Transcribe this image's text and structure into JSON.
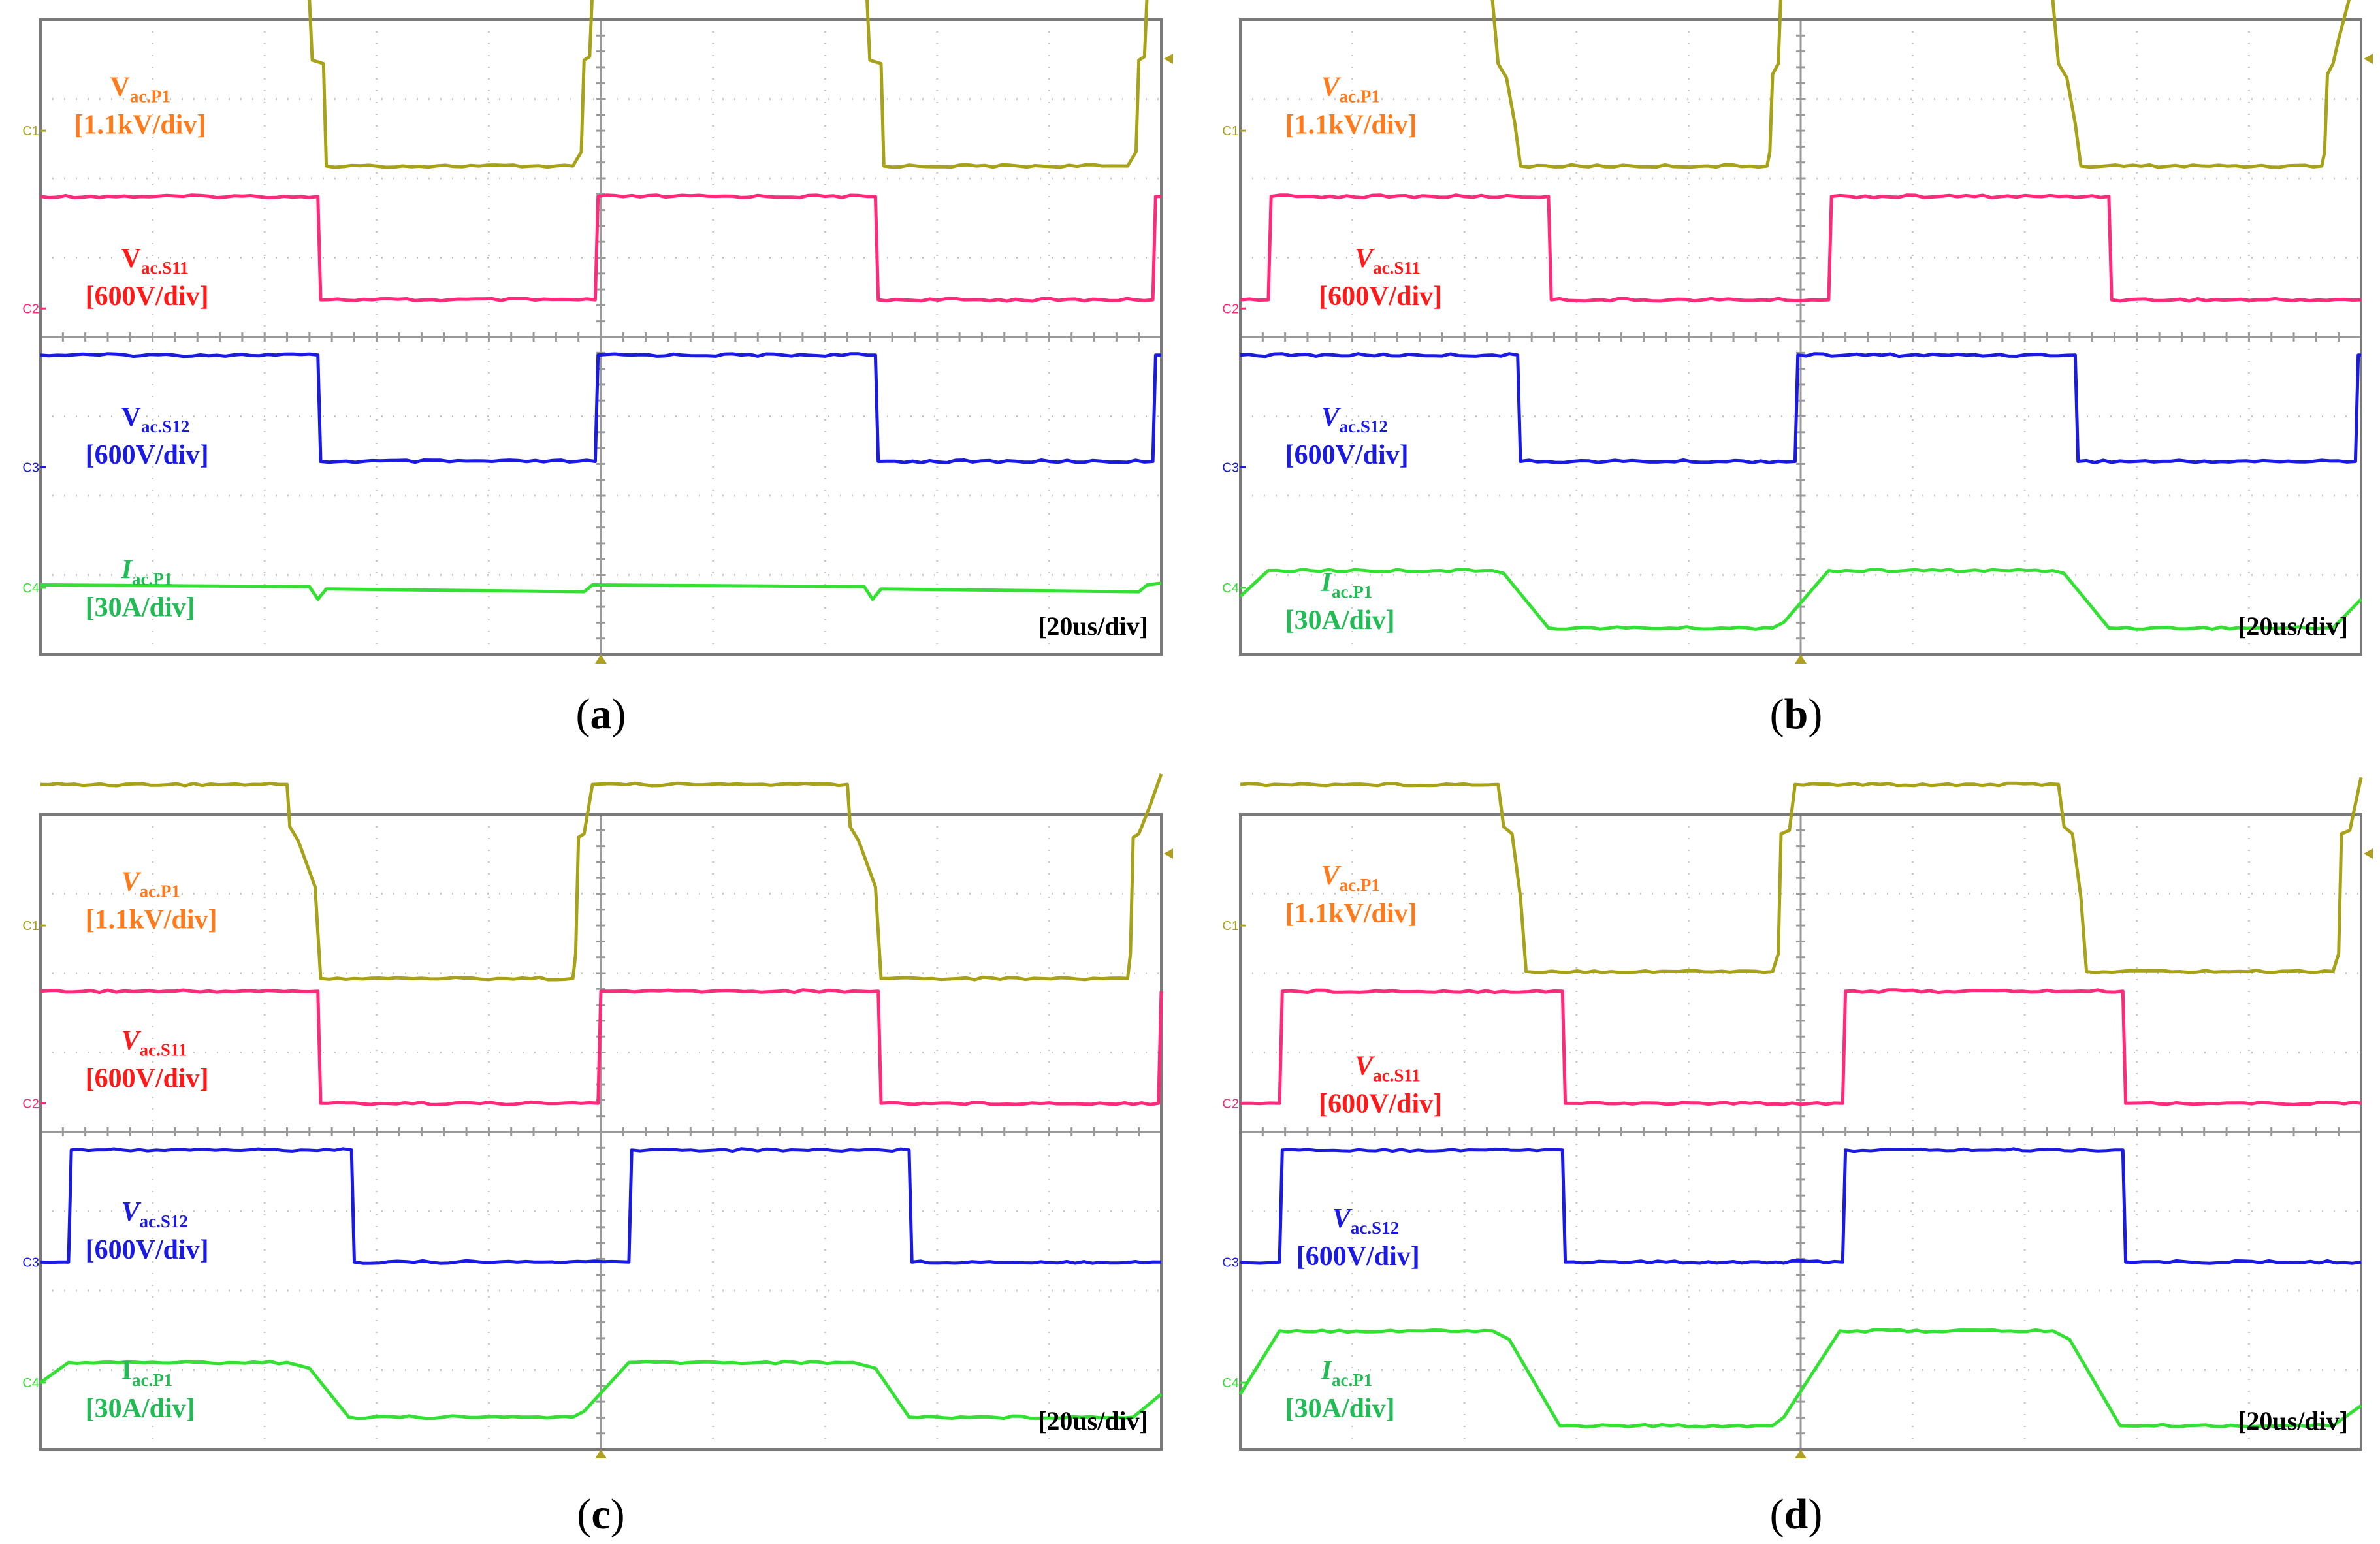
{
  "colors": {
    "ch1": "#a8a21a",
    "ch2": "#ff2a7a",
    "ch3": "#1a1ae0",
    "ch4": "#33e033",
    "v_p1_label": "#ff7a1a",
    "v_s11_label": "#ff1a1a",
    "v_s12_label": "#1a1ae0",
    "i_p1_label": "#22bb55"
  },
  "channel_tags": [
    "C1",
    "C2",
    "C3",
    "C4"
  ],
  "chart_data": [
    {
      "type": "line",
      "caption": "(a)",
      "timebase": "[20us/div]",
      "xlim": [
        0,
        200
      ],
      "x_unit": "us",
      "divisions": {
        "x": 10,
        "y": 8
      },
      "series": [
        {
          "channel": "C1",
          "label_main": "V",
          "label_sub": "ac.P1",
          "scale": "[1.1kV/div]",
          "italic": false,
          "high": 2.0,
          "low": -0.55,
          "points": [
            [
              0,
              2.0
            ],
            [
              47,
              2.0
            ],
            [
              48,
              1.85
            ],
            [
              48.5,
              1.0
            ],
            [
              50.5,
              0.95
            ],
            [
              51,
              -0.5
            ],
            [
              95,
              -0.5
            ],
            [
              96.5,
              -0.3
            ],
            [
              97,
              1.0
            ],
            [
              98,
              1.05
            ],
            [
              98.5,
              2.0
            ],
            [
              147,
              2.0
            ],
            [
              147.5,
              1.85
            ],
            [
              148,
              1.0
            ],
            [
              150,
              0.95
            ],
            [
              150.5,
              -0.5
            ],
            [
              194,
              -0.5
            ],
            [
              195.5,
              -0.3
            ],
            [
              196,
              1.0
            ],
            [
              197,
              1.05
            ],
            [
              197.5,
              2.0
            ],
            [
              200,
              2.0
            ]
          ]
        },
        {
          "channel": "C2",
          "label_main": "V",
          "label_sub": "ac.S11",
          "scale": "[600V/div]",
          "italic": false,
          "high": 1.95,
          "low": 0.15,
          "points": [
            [
              0,
              1.95
            ],
            [
              49.5,
              1.95
            ],
            [
              50,
              0.15
            ],
            [
              99,
              0.15
            ],
            [
              99.5,
              1.95
            ],
            [
              149,
              1.95
            ],
            [
              149.5,
              0.15
            ],
            [
              198.5,
              0.15
            ],
            [
              199,
              1.95
            ],
            [
              200,
              1.95
            ]
          ]
        },
        {
          "channel": "C3",
          "label_main": "V",
          "label_sub": "ac.S12",
          "scale": "[600V/div]",
          "italic": false,
          "high": 1.95,
          "low": 0.1,
          "points": [
            [
              0,
              1.95
            ],
            [
              49.5,
              1.95
            ],
            [
              50,
              0.1
            ],
            [
              99,
              0.1
            ],
            [
              99.5,
              1.95
            ],
            [
              149,
              1.95
            ],
            [
              149.5,
              0.1
            ],
            [
              198.5,
              0.1
            ],
            [
              199,
              1.95
            ],
            [
              200,
              1.95
            ]
          ]
        },
        {
          "channel": "C4",
          "label_main": "I",
          "label_sub": "ac.P1",
          "scale": "[30A/div]",
          "italic": true,
          "high": 0.05,
          "low": -0.05,
          "points": [
            [
              0,
              0.05
            ],
            [
              48,
              0.02
            ],
            [
              49.5,
              -0.2
            ],
            [
              51,
              -0.02
            ],
            [
              97,
              -0.07
            ],
            [
              98.5,
              0.05
            ],
            [
              147,
              0.02
            ],
            [
              148.5,
              -0.2
            ],
            [
              150,
              -0.02
            ],
            [
              196,
              -0.07
            ],
            [
              197.5,
              0.05
            ],
            [
              200,
              0.08
            ]
          ]
        }
      ]
    },
    {
      "type": "line",
      "caption": "(b)",
      "timebase": "[20us/div]",
      "xlim": [
        0,
        200
      ],
      "x_unit": "us",
      "divisions": {
        "x": 10,
        "y": 8
      },
      "series": [
        {
          "channel": "C1",
          "label_main": "V",
          "label_sub": "ac.P1",
          "scale": "[1.1kV/div]",
          "italic": true,
          "high": 2.0,
          "low": -0.5,
          "points": [
            [
              0,
              2.0
            ],
            [
              44,
              2.0
            ],
            [
              45,
              1.85
            ],
            [
              46,
              0.95
            ],
            [
              47.5,
              0.75
            ],
            [
              49,
              0.1
            ],
            [
              50,
              -0.5
            ],
            [
              94,
              -0.5
            ],
            [
              94.5,
              -0.3
            ],
            [
              95,
              0.8
            ],
            [
              96,
              0.95
            ],
            [
              96.5,
              2.0
            ],
            [
              144,
              2.0
            ],
            [
              145,
              1.85
            ],
            [
              146,
              0.95
            ],
            [
              147.5,
              0.75
            ],
            [
              149,
              0.1
            ],
            [
              150,
              -0.5
            ],
            [
              193,
              -0.5
            ],
            [
              193.5,
              -0.3
            ],
            [
              194,
              0.8
            ],
            [
              195,
              0.95
            ],
            [
              196,
              1.3
            ],
            [
              198,
              1.9
            ],
            [
              200,
              2.1
            ]
          ]
        },
        {
          "channel": "C2",
          "label_main": "V",
          "label_sub": "ac.S11",
          "scale": "[600V/div]",
          "italic": true,
          "high": 1.95,
          "low": 0.15,
          "points": [
            [
              0,
              0.15
            ],
            [
              5,
              0.15
            ],
            [
              5.5,
              1.95
            ],
            [
              55,
              1.95
            ],
            [
              55.5,
              0.15
            ],
            [
              105,
              0.15
            ],
            [
              105.5,
              1.95
            ],
            [
              155,
              1.95
            ],
            [
              155.5,
              0.15
            ],
            [
              200,
              0.15
            ]
          ]
        },
        {
          "channel": "C3",
          "label_main": "V",
          "label_sub": "ac.S12",
          "scale": "[600V/div]",
          "italic": true,
          "high": 1.95,
          "low": 0.1,
          "points": [
            [
              0,
              1.95
            ],
            [
              49.5,
              1.95
            ],
            [
              50,
              0.1
            ],
            [
              99,
              0.1
            ],
            [
              99.5,
              1.95
            ],
            [
              149,
              1.95
            ],
            [
              149.5,
              0.1
            ],
            [
              199,
              0.1
            ],
            [
              199.5,
              1.95
            ],
            [
              200,
              1.95
            ]
          ]
        },
        {
          "channel": "C4",
          "label_main": "I",
          "label_sub": "ac.P1",
          "scale": "[30A/div]",
          "italic": true,
          "high": 0.3,
          "low": -0.7,
          "points": [
            [
              0,
              -0.15
            ],
            [
              5,
              0.3
            ],
            [
              45,
              0.3
            ],
            [
              47,
              0.25
            ],
            [
              55,
              -0.7
            ],
            [
              95,
              -0.7
            ],
            [
              97,
              -0.6
            ],
            [
              105,
              0.3
            ],
            [
              145,
              0.3
            ],
            [
              147,
              0.25
            ],
            [
              155,
              -0.7
            ],
            [
              195,
              -0.7
            ],
            [
              200,
              -0.2
            ]
          ]
        }
      ]
    },
    {
      "type": "line",
      "caption": "(c)",
      "timebase": "[20us/div]",
      "xlim": [
        0,
        200
      ],
      "x_unit": "us",
      "divisions": {
        "x": 10,
        "y": 8
      },
      "series": [
        {
          "channel": "C1",
          "label_main": "V",
          "label_sub": "ac.P1",
          "scale": "[1.1kV/div]",
          "italic": true,
          "high": 2.0,
          "low": -0.75,
          "points": [
            [
              0,
              2.0
            ],
            [
              44,
              2.0
            ],
            [
              44.5,
              1.4
            ],
            [
              46,
              1.2
            ],
            [
              49,
              0.55
            ],
            [
              50,
              -0.75
            ],
            [
              95,
              -0.75
            ],
            [
              95.5,
              -0.4
            ],
            [
              96,
              1.25
            ],
            [
              97,
              1.3
            ],
            [
              98.5,
              2.0
            ],
            [
              144,
              2.0
            ],
            [
              144.5,
              1.4
            ],
            [
              146,
              1.2
            ],
            [
              149,
              0.55
            ],
            [
              150,
              -0.75
            ],
            [
              194,
              -0.75
            ],
            [
              194.5,
              -0.4
            ],
            [
              195,
              1.25
            ],
            [
              196,
              1.3
            ],
            [
              198,
              1.7
            ],
            [
              200,
              2.15
            ]
          ]
        },
        {
          "channel": "C2",
          "label_main": "V",
          "label_sub": "ac.S11",
          "scale": "[600V/div]",
          "italic": true,
          "high": 1.95,
          "low": 0.0,
          "points": [
            [
              0,
              1.95
            ],
            [
              49.5,
              1.95
            ],
            [
              50,
              0.0
            ],
            [
              99.5,
              0.0
            ],
            [
              100,
              1.95
            ],
            [
              149.5,
              1.95
            ],
            [
              150,
              0.0
            ],
            [
              199.5,
              0.0
            ],
            [
              200,
              1.95
            ]
          ]
        },
        {
          "channel": "C3",
          "label_main": "V",
          "label_sub": "ac.S12",
          "scale": "[600V/div]",
          "italic": true,
          "high": 1.95,
          "low": 0.0,
          "points": [
            [
              0,
              0.0
            ],
            [
              5,
              0.0
            ],
            [
              5.5,
              1.95
            ],
            [
              55.5,
              1.95
            ],
            [
              56,
              0.0
            ],
            [
              105,
              0.0
            ],
            [
              105.5,
              1.95
            ],
            [
              155,
              1.95
            ],
            [
              155.5,
              0.0
            ],
            [
              200,
              0.0
            ]
          ]
        },
        {
          "channel": "C4",
          "label_main": "I",
          "label_sub": "ac.P1",
          "scale": "[30A/div]",
          "italic": false,
          "high": 0.35,
          "low": -0.6,
          "points": [
            [
              0,
              0.0
            ],
            [
              5,
              0.35
            ],
            [
              44,
              0.35
            ],
            [
              48,
              0.25
            ],
            [
              55,
              -0.6
            ],
            [
              95,
              -0.6
            ],
            [
              97,
              -0.5
            ],
            [
              105,
              0.35
            ],
            [
              145,
              0.35
            ],
            [
              149,
              0.25
            ],
            [
              155,
              -0.6
            ],
            [
              195,
              -0.6
            ],
            [
              200,
              -0.2
            ]
          ]
        }
      ]
    },
    {
      "type": "line",
      "caption": "(d)",
      "timebase": "[20us/div]",
      "xlim": [
        0,
        200
      ],
      "x_unit": "us",
      "divisions": {
        "x": 10,
        "y": 8
      },
      "series": [
        {
          "channel": "C1",
          "label_main": "V",
          "label_sub": "ac.P1",
          "scale": "[1.1kV/div]",
          "italic": true,
          "high": 2.0,
          "low": -0.65,
          "points": [
            [
              0,
              2.0
            ],
            [
              46,
              2.0
            ],
            [
              47,
              1.4
            ],
            [
              48.5,
              1.3
            ],
            [
              50,
              0.4
            ],
            [
              51,
              -0.65
            ],
            [
              95,
              -0.65
            ],
            [
              96,
              -0.4
            ],
            [
              96.5,
              1.3
            ],
            [
              98,
              1.35
            ],
            [
              99,
              2.0
            ],
            [
              146,
              2.0
            ],
            [
              147,
              1.4
            ],
            [
              148.5,
              1.3
            ],
            [
              150,
              0.4
            ],
            [
              151,
              -0.65
            ],
            [
              195,
              -0.65
            ],
            [
              196,
              -0.4
            ],
            [
              196.5,
              1.3
            ],
            [
              198,
              1.35
            ],
            [
              200,
              2.1
            ]
          ]
        },
        {
          "channel": "C2",
          "label_main": "V",
          "label_sub": "ac.S11",
          "scale": "[600V/div]",
          "italic": true,
          "high": 1.95,
          "low": 0.0,
          "points": [
            [
              0,
              0.0
            ],
            [
              7,
              0.0
            ],
            [
              7.5,
              1.95
            ],
            [
              57.5,
              1.95
            ],
            [
              58,
              0.0
            ],
            [
              107.5,
              0.0
            ],
            [
              108,
              1.95
            ],
            [
              157.5,
              1.95
            ],
            [
              158,
              0.0
            ],
            [
              200,
              0.0
            ]
          ]
        },
        {
          "channel": "C3",
          "label_main": "V",
          "label_sub": "ac.S12",
          "scale": "[600V/div]",
          "italic": true,
          "high": 1.95,
          "low": 0.0,
          "points": [
            [
              0,
              0.0
            ],
            [
              7,
              0.0
            ],
            [
              7.5,
              1.95
            ],
            [
              57.5,
              1.95
            ],
            [
              58,
              0.0
            ],
            [
              107.5,
              0.0
            ],
            [
              108,
              1.95
            ],
            [
              157.5,
              1.95
            ],
            [
              158,
              0.0
            ],
            [
              200,
              0.0
            ]
          ]
        },
        {
          "channel": "C4",
          "label_main": "I",
          "label_sub": "ac.P1",
          "scale": "[30A/div]",
          "italic": true,
          "high": 0.9,
          "low": -0.75,
          "points": [
            [
              0,
              -0.2
            ],
            [
              7,
              0.9
            ],
            [
              45,
              0.9
            ],
            [
              48,
              0.75
            ],
            [
              57,
              -0.75
            ],
            [
              95,
              -0.75
            ],
            [
              97,
              -0.6
            ],
            [
              107,
              0.9
            ],
            [
              145,
              0.9
            ],
            [
              148,
              0.75
            ],
            [
              157,
              -0.75
            ],
            [
              195,
              -0.75
            ],
            [
              200,
              -0.4
            ]
          ]
        }
      ]
    }
  ]
}
